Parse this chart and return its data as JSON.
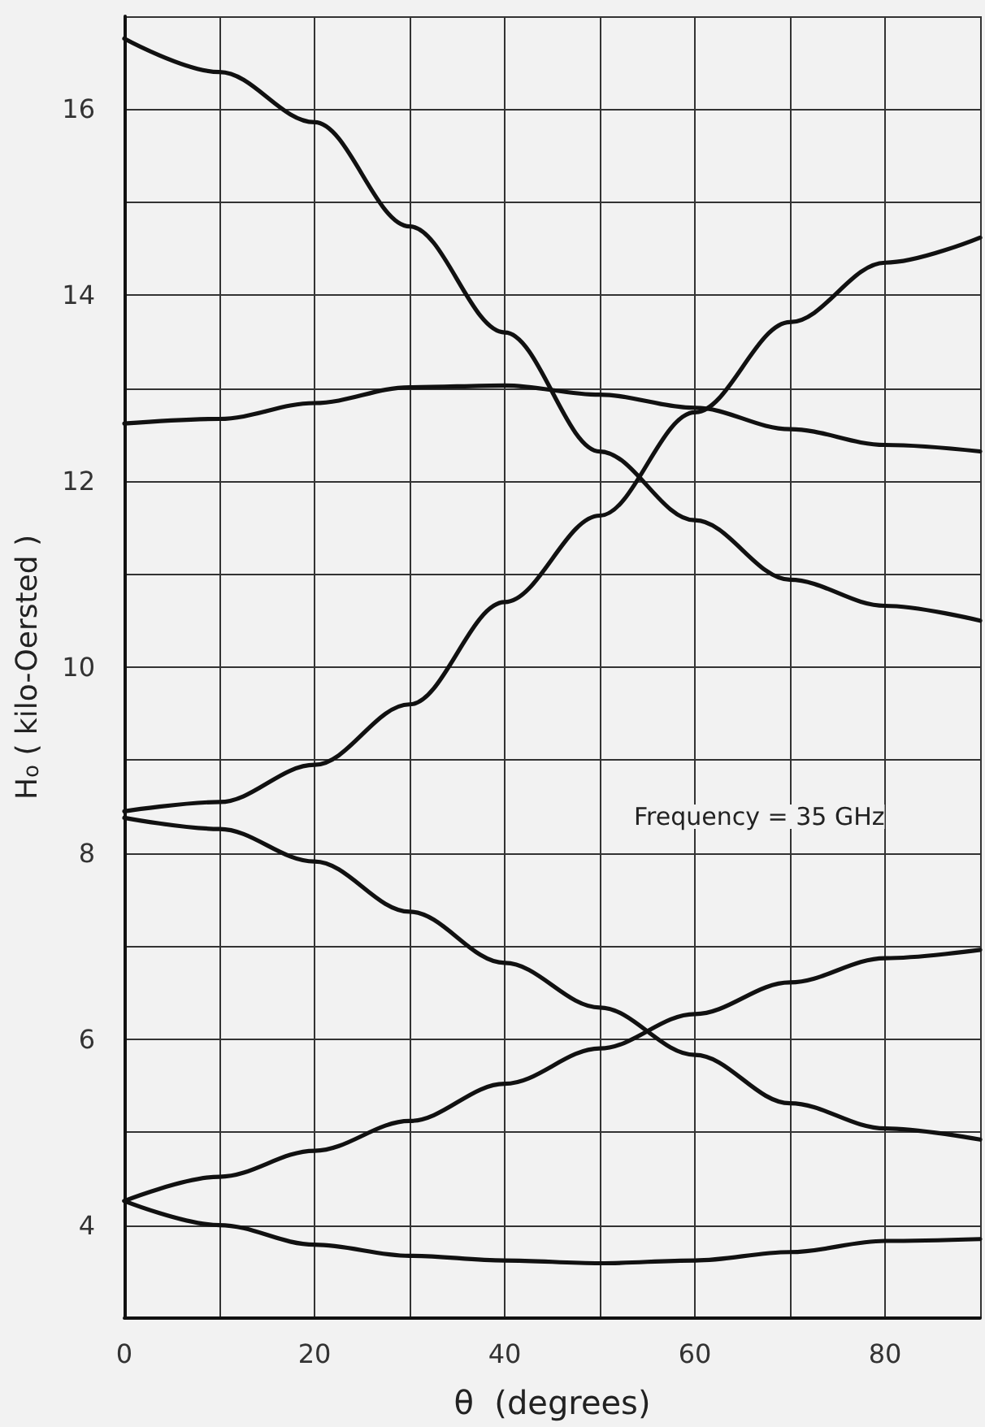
{
  "chart_data": {
    "type": "line",
    "xlabel": "θ  (degrees)",
    "ylabel": "H$_{o}$ ( kilo-Oersted )",
    "annotations": [
      "Frequency = 35 GHz"
    ],
    "x": [
      0,
      10,
      20,
      30,
      40,
      50,
      60,
      70,
      80,
      90
    ],
    "series": [
      {
        "color": "#111111",
        "values": [
          16.76,
          16.4,
          15.86,
          14.74,
          13.6,
          12.32,
          11.58,
          10.94,
          10.66,
          10.5
        ]
      },
      {
        "color": "#111111",
        "values": [
          12.62,
          12.67,
          12.84,
          13.01,
          13.03,
          12.93,
          12.79,
          12.56,
          12.39,
          12.32
        ]
      },
      {
        "color": "#111111",
        "values": [
          8.45,
          8.55,
          8.95,
          9.6,
          10.7,
          11.63,
          12.74,
          13.71,
          14.35,
          14.62
        ]
      },
      {
        "color": "#111111",
        "values": [
          8.38,
          8.26,
          7.91,
          7.37,
          6.82,
          6.34,
          5.83,
          5.31,
          5.04,
          4.92
        ]
      },
      {
        "color": "#111111",
        "values": [
          4.26,
          4.52,
          4.8,
          5.12,
          5.52,
          5.9,
          6.27,
          6.61,
          6.87,
          6.96
        ]
      },
      {
        "color": "#111111",
        "values": [
          4.26,
          4.0,
          3.79,
          3.67,
          3.62,
          3.59,
          3.62,
          3.71,
          3.83,
          3.85
        ]
      }
    ],
    "xlim": [
      0,
      90
    ],
    "xticks": [
      0,
      {
        "value": 10,
        "label": null
      },
      20,
      {
        "value": 30,
        "label": null
      },
      40,
      {
        "value": 50,
        "label": null
      },
      60,
      {
        "value": 70,
        "label": null
      },
      80,
      {
        "value": 90,
        "label": null
      }
    ],
    "ylim": [
      3,
      17
    ],
    "yticks": [
      {
        "value": 3,
        "label": null
      },
      4,
      {
        "value": 5,
        "label": null
      },
      6,
      {
        "value": 7,
        "label": null
      },
      8,
      {
        "value": 9,
        "label": null
      },
      10,
      {
        "value": 11,
        "label": null
      },
      12,
      {
        "value": 13,
        "label": null
      },
      14,
      {
        "value": 15,
        "label": null
      },
      16,
      {
        "value": 17,
        "label": null
      }
    ],
    "grid": true,
    "marker": "none",
    "line_style": "solid"
  }
}
